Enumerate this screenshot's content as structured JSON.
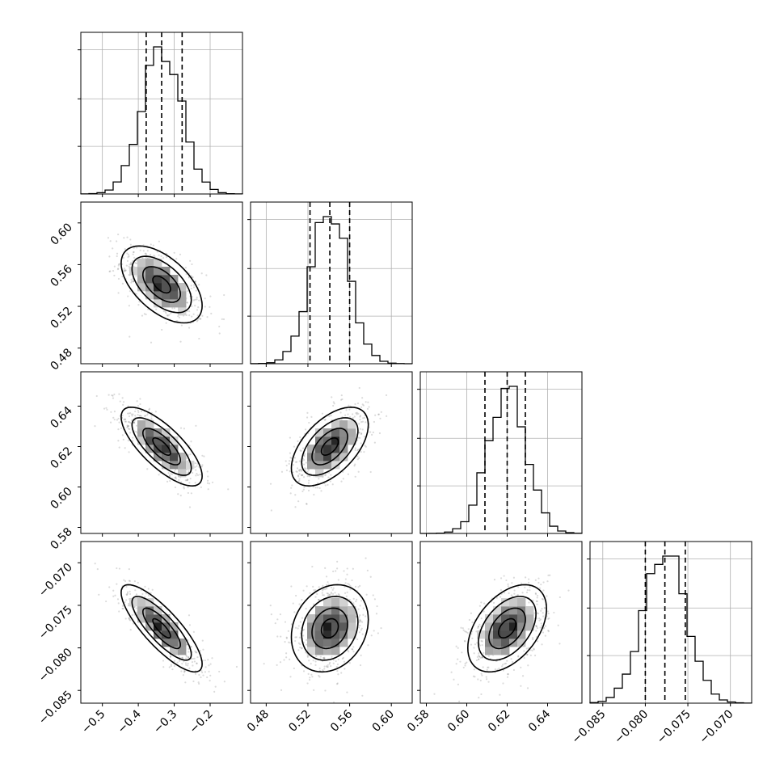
{
  "chart_data": {
    "type": "corner",
    "title": "",
    "grid": true,
    "parameters": [
      {
        "range": [
          -0.56,
          -0.11
        ],
        "center": -0.335,
        "sd": 0.055,
        "quantiles": [
          -0.378,
          -0.335,
          -0.278
        ],
        "ticks": [
          -0.5,
          -0.4,
          -0.3,
          -0.2
        ],
        "tick_labels": [
          "−0.5",
          "−0.4",
          "−0.3",
          "−0.2"
        ]
      },
      {
        "range": [
          0.465,
          0.62
        ],
        "center": 0.541,
        "sd": 0.018,
        "quantiles": [
          0.522,
          0.541,
          0.56
        ],
        "ticks": [
          0.48,
          0.52,
          0.56,
          0.6
        ],
        "tick_labels": [
          "0.48",
          "0.52",
          "0.56",
          "0.60"
        ]
      },
      {
        "range": [
          0.577,
          0.657
        ],
        "center": 0.62,
        "sd": 0.0095,
        "quantiles": [
          0.609,
          0.62,
          0.629
        ],
        "ticks": [
          0.58,
          0.6,
          0.62,
          0.64
        ],
        "tick_labels": [
          "0.58",
          "0.60",
          "0.62",
          "0.64"
        ]
      },
      {
        "range": [
          -0.0865,
          -0.0675
        ],
        "center": -0.0777,
        "sd": 0.0025,
        "quantiles": [
          -0.08,
          -0.0777,
          -0.0753
        ],
        "ticks": [
          -0.085,
          -0.08,
          -0.075,
          -0.07
        ],
        "tick_labels": [
          "−0.085",
          "−0.080",
          "−0.075",
          "−0.070"
        ]
      }
    ],
    "correlations": [
      {
        "pair": [
          0,
          1
        ],
        "r": -0.55
      },
      {
        "pair": [
          0,
          2
        ],
        "r": -0.75
      },
      {
        "pair": [
          0,
          3
        ],
        "r": -0.82
      },
      {
        "pair": [
          1,
          2
        ],
        "r": 0.55
      },
      {
        "pair": [
          1,
          3
        ],
        "r": 0.2
      },
      {
        "pair": [
          2,
          3
        ],
        "r": 0.45
      }
    ]
  }
}
